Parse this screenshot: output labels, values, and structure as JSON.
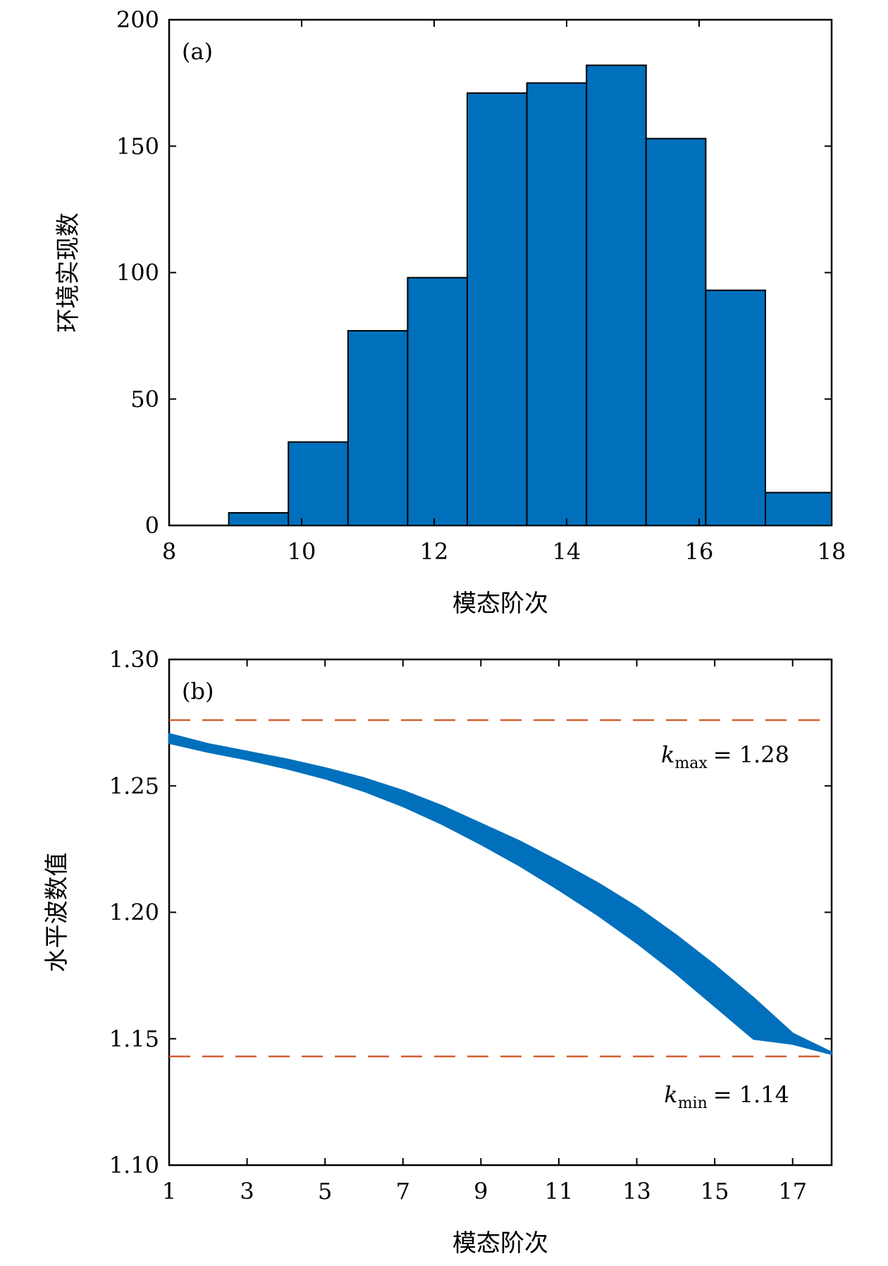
{
  "chart_data": [
    {
      "type": "bar",
      "panel": "(a)",
      "title": "",
      "xlabel": "模态阶次",
      "ylabel": "环境实现数",
      "xlim": [
        8,
        18
      ],
      "ylim": [
        0,
        200
      ],
      "xticks": [
        8,
        10,
        12,
        14,
        16,
        18
      ],
      "yticks": [
        0,
        50,
        100,
        150,
        200
      ],
      "bin_edges": [
        8.0,
        8.9,
        9.8,
        10.7,
        11.6,
        12.5,
        13.4,
        14.3,
        15.2,
        16.1,
        17.0,
        18.0
      ],
      "values": [
        0,
        5,
        33,
        77,
        98,
        171,
        175,
        182,
        153,
        93,
        13
      ],
      "bar_color": "#0070bc",
      "grid": false
    },
    {
      "type": "line",
      "panel": "(b)",
      "title": "",
      "xlabel": "模态阶次",
      "ylabel": "水平波数值",
      "xlim": [
        1,
        18
      ],
      "ylim": [
        1.1,
        1.3
      ],
      "xticks": [
        1,
        3,
        5,
        7,
        9,
        11,
        13,
        15,
        17
      ],
      "yticks": [
        1.1,
        1.15,
        1.2,
        1.25,
        1.3
      ],
      "band": {
        "color": "#0070bc",
        "upper": [
          [
            1,
            1.2705
          ],
          [
            2,
            1.2665
          ],
          [
            3,
            1.2635
          ],
          [
            4,
            1.2605
          ],
          [
            5,
            1.257
          ],
          [
            6,
            1.253
          ],
          [
            7,
            1.248
          ],
          [
            8,
            1.242
          ],
          [
            9,
            1.235
          ],
          [
            10,
            1.228
          ],
          [
            11,
            1.22
          ],
          [
            12,
            1.2115
          ],
          [
            13,
            1.202
          ],
          [
            14,
            1.191
          ],
          [
            15,
            1.179
          ],
          [
            16,
            1.166
          ],
          [
            17,
            1.152
          ],
          [
            18,
            1.1445
          ]
        ],
        "lower": [
          [
            1,
            1.267
          ],
          [
            2,
            1.2635
          ],
          [
            3,
            1.2605
          ],
          [
            4,
            1.257
          ],
          [
            5,
            1.253
          ],
          [
            6,
            1.248
          ],
          [
            7,
            1.242
          ],
          [
            8,
            1.235
          ],
          [
            9,
            1.227
          ],
          [
            10,
            1.2185
          ],
          [
            11,
            1.209
          ],
          [
            12,
            1.199
          ],
          [
            13,
            1.188
          ],
          [
            14,
            1.176
          ],
          [
            15,
            1.163
          ],
          [
            16,
            1.15
          ],
          [
            17,
            1.148
          ],
          [
            18,
            1.144
          ]
        ]
      },
      "reference_lines": [
        {
          "y": 1.276,
          "color": "#d35f2e",
          "style": "dashed",
          "label_var": "k",
          "label_sub": "max",
          "label_value": "= 1.28"
        },
        {
          "y": 1.143,
          "color": "#d35f2e",
          "style": "dashed",
          "label_var": "k",
          "label_sub": "min",
          "label_value": "= 1.14"
        }
      ],
      "grid": false
    }
  ]
}
